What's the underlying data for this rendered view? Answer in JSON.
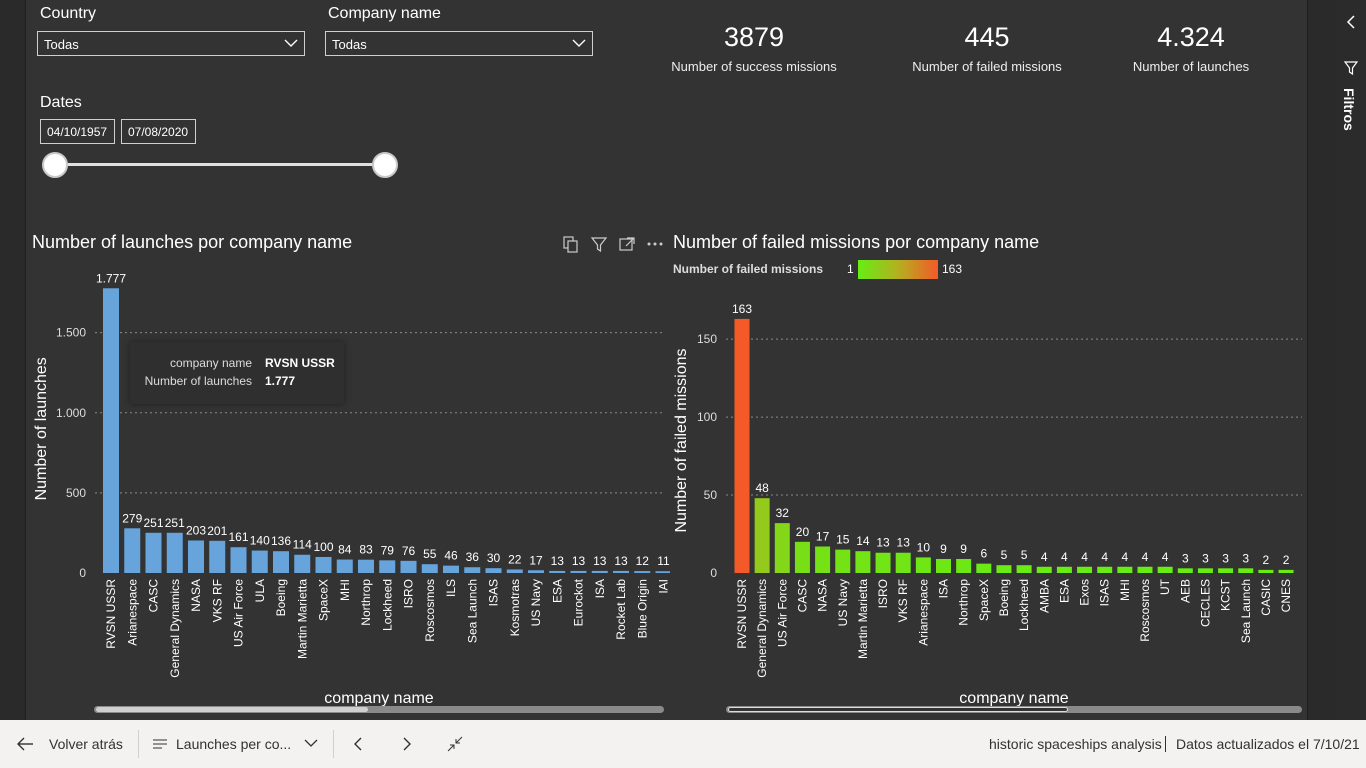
{
  "filters": {
    "country_label": "Country",
    "country_value": "Todas",
    "company_label": "Company name",
    "company_value": "Todas",
    "dates_label": "Dates",
    "date_start": "04/10/1957",
    "date_end": "07/08/2020"
  },
  "kpis": [
    {
      "value": "3879",
      "label": "Number of success missions"
    },
    {
      "value": "445",
      "label": "Number of failed missions"
    },
    {
      "value": "4.324",
      "label": "Number of launches"
    }
  ],
  "filters_pane": {
    "title": "Filtros"
  },
  "tooltip": {
    "key1": "company name",
    "val1": "RVSN USSR",
    "key2": "Number of launches",
    "val2": "1.777"
  },
  "legend": {
    "label": "Number of failed missions",
    "min": "1",
    "max": "163"
  },
  "colors": {
    "bar_blue": "#68a4dc",
    "gradient_low": "#66ee14",
    "gradient_high": "#f45a28",
    "canvas": "#333333"
  },
  "chart_data": [
    {
      "type": "bar",
      "title": "Number of launches por company name",
      "xlabel": "company name",
      "ylabel": "Number of launches",
      "ylim": [
        0,
        1800
      ],
      "yticks": [
        0,
        500,
        1000,
        1500
      ],
      "ytick_labels": [
        "0",
        "500",
        "1.000",
        "1.500"
      ],
      "grid": true,
      "categories": [
        "RVSN USSR",
        "Arianespace",
        "CASC",
        "General Dynamics",
        "NASA",
        "VKS RF",
        "US Air Force",
        "ULA",
        "Boeing",
        "Martin Marietta",
        "SpaceX",
        "MHI",
        "Northrop",
        "Lockheed",
        "ISRO",
        "Roscosmos",
        "ILS",
        "Sea Launch",
        "ISAS",
        "Kosmotras",
        "US Navy",
        "ESA",
        "Eurockot",
        "ISA",
        "Rocket Lab",
        "Blue Origin",
        "IAI"
      ],
      "values": [
        1777,
        279,
        251,
        251,
        203,
        201,
        161,
        140,
        136,
        114,
        100,
        84,
        83,
        79,
        76,
        55,
        46,
        36,
        30,
        22,
        17,
        13,
        13,
        13,
        13,
        12,
        11
      ],
      "value_labels": [
        "1.777",
        "279",
        "251",
        "251",
        "203",
        "201",
        "161",
        "140",
        "136",
        "114",
        "100",
        "84",
        "83",
        "79",
        "76",
        "55",
        "46",
        "36",
        "30",
        "22",
        "17",
        "13",
        "13",
        "13",
        "13",
        "12",
        "11"
      ]
    },
    {
      "type": "bar",
      "title": "Number of failed missions por company name",
      "xlabel": "company name",
      "ylabel": "Number of failed missions",
      "ylim": [
        0,
        170
      ],
      "yticks": [
        0,
        50,
        100,
        150
      ],
      "ytick_labels": [
        "0",
        "50",
        "100",
        "150"
      ],
      "grid": true,
      "color_scale": {
        "min": 1,
        "max": 163
      },
      "categories": [
        "RVSN USSR",
        "General Dynamics",
        "US Air Force",
        "CASC",
        "NASA",
        "US Navy",
        "Martin Marietta",
        "ISRO",
        "VKS RF",
        "Arianespace",
        "ISA",
        "Northrop",
        "SpaceX",
        "Boeing",
        "Lockheed",
        "AMBA",
        "ESA",
        "Exos",
        "ISAS",
        "MHI",
        "Roscosmos",
        "UT",
        "AEB",
        "CECLES",
        "KCST",
        "Sea Launch",
        "CASIC",
        "CNES"
      ],
      "values": [
        163,
        48,
        32,
        20,
        17,
        15,
        14,
        13,
        13,
        10,
        9,
        9,
        6,
        5,
        5,
        4,
        4,
        4,
        4,
        4,
        4,
        4,
        3,
        3,
        3,
        3,
        2,
        2
      ]
    }
  ],
  "bottom_bar": {
    "back_label": "Volver atrás",
    "page_label": "Launches per co...",
    "report_name": "historic spaceships analysis",
    "updated": "Datos actualizados el 7/10/21"
  }
}
